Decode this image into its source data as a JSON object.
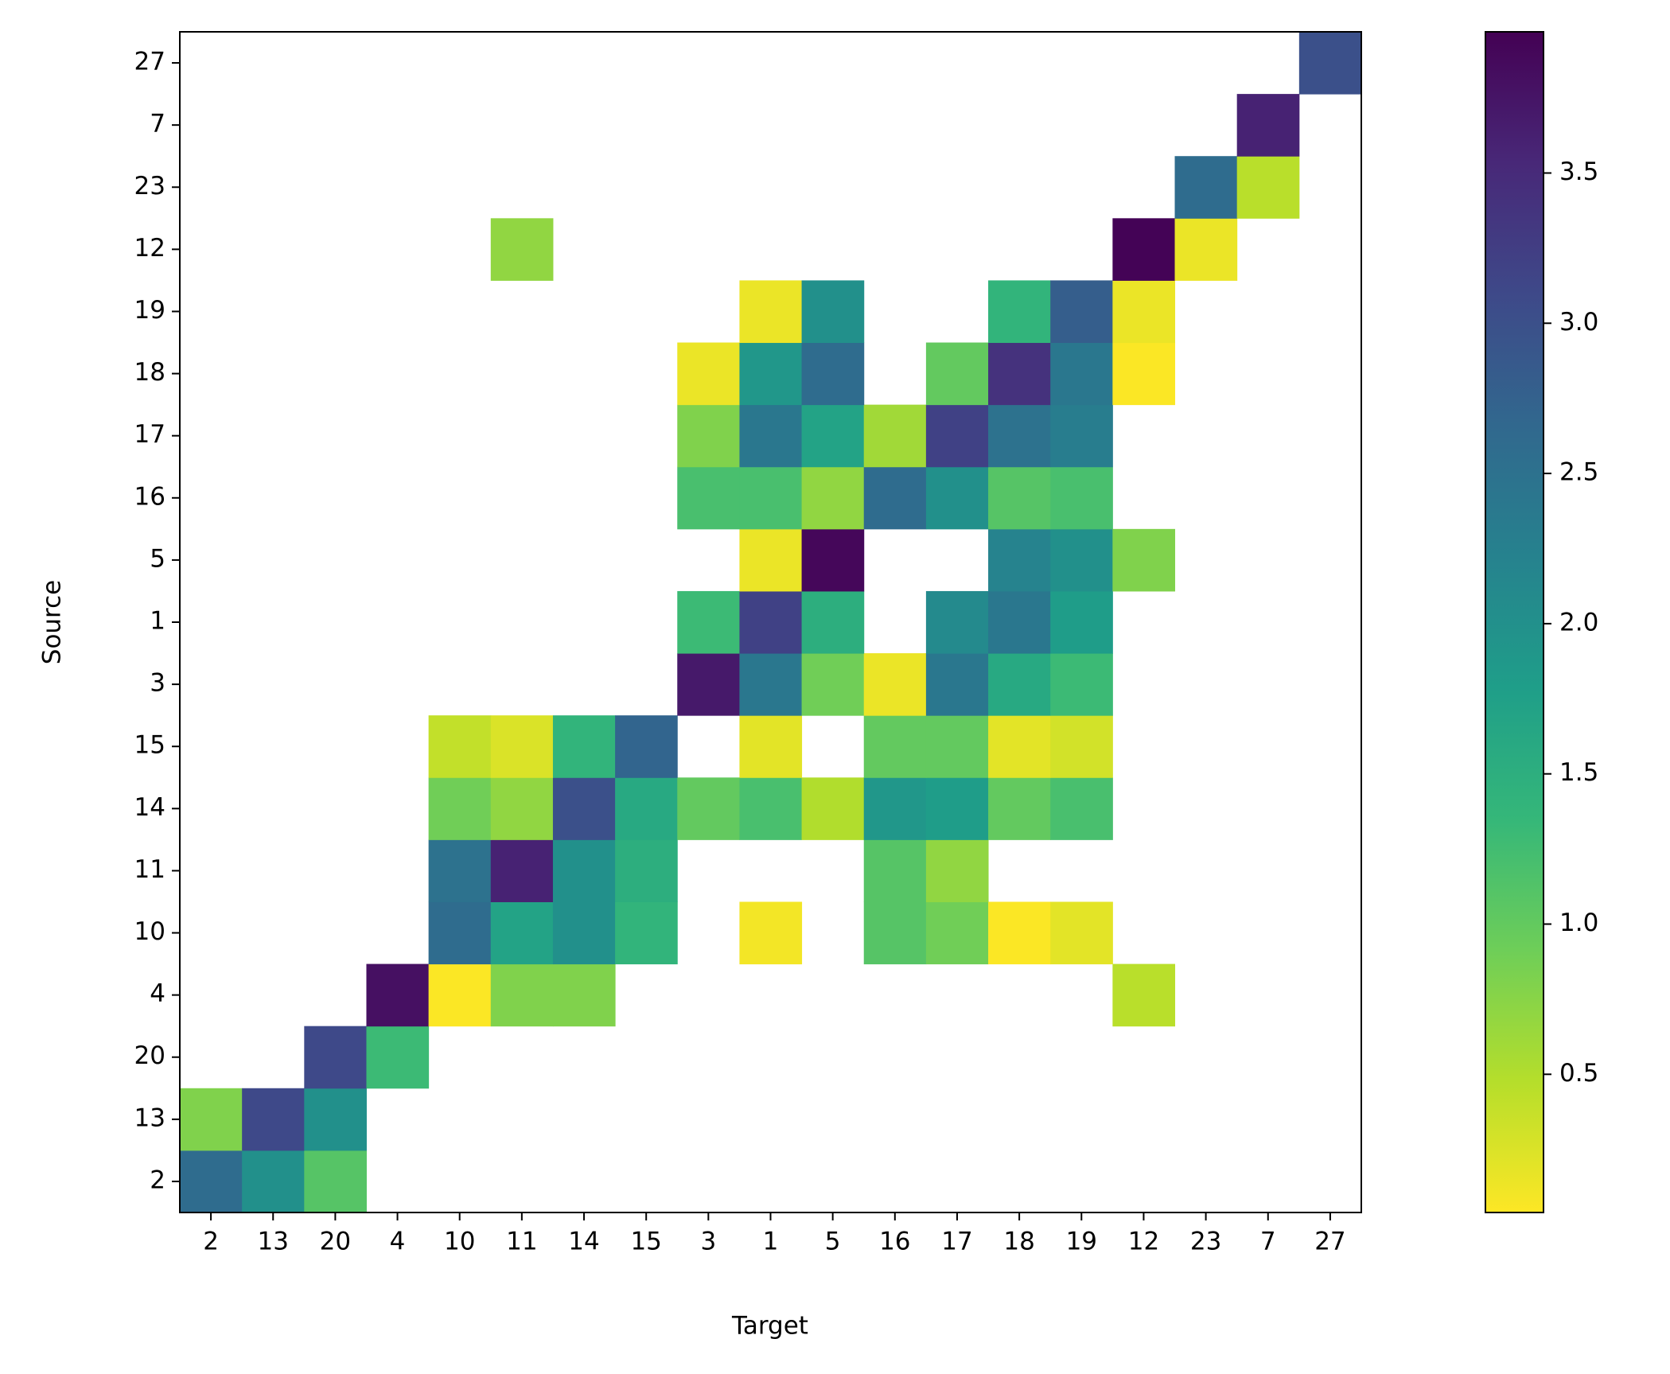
{
  "chart_data": {
    "type": "heatmap",
    "x_label": "Target",
    "y_label": "Source",
    "x_categories": [
      "2",
      "13",
      "20",
      "4",
      "10",
      "11",
      "14",
      "15",
      "3",
      "1",
      "5",
      "16",
      "17",
      "18",
      "19",
      "12",
      "23",
      "7",
      "27"
    ],
    "y_categories": [
      "2",
      "13",
      "20",
      "4",
      "10",
      "11",
      "14",
      "15",
      "3",
      "1",
      "5",
      "16",
      "17",
      "18",
      "19",
      "12",
      "23",
      "7",
      "27"
    ],
    "values": [
      [
        2.6,
        2.0,
        1.1,
        null,
        null,
        null,
        null,
        null,
        null,
        null,
        null,
        null,
        null,
        null,
        null,
        null,
        null,
        null,
        null
      ],
      [
        0.8,
        3.1,
        2.0,
        null,
        null,
        null,
        null,
        null,
        null,
        null,
        null,
        null,
        null,
        null,
        null,
        null,
        null,
        null,
        null
      ],
      [
        null,
        null,
        3.1,
        1.3,
        null,
        null,
        null,
        null,
        null,
        null,
        null,
        null,
        null,
        null,
        null,
        null,
        null,
        null,
        null
      ],
      [
        null,
        null,
        null,
        3.8,
        0.05,
        0.8,
        0.8,
        null,
        null,
        null,
        null,
        null,
        null,
        null,
        null,
        0.45,
        null,
        null,
        null
      ],
      [
        null,
        null,
        null,
        null,
        2.6,
        1.7,
        2.0,
        1.4,
        null,
        0.1,
        null,
        1.1,
        0.9,
        0.05,
        0.2,
        null,
        null,
        null,
        null
      ],
      [
        null,
        null,
        null,
        null,
        2.5,
        3.6,
        2.0,
        1.5,
        null,
        null,
        null,
        1.1,
        0.7,
        null,
        null,
        null,
        null,
        null,
        null
      ],
      [
        null,
        null,
        null,
        null,
        0.9,
        0.7,
        3.0,
        1.6,
        1.0,
        1.2,
        0.5,
        1.9,
        1.8,
        1.0,
        1.2,
        null,
        null,
        null,
        null
      ],
      [
        null,
        null,
        null,
        null,
        0.4,
        0.25,
        1.4,
        2.7,
        null,
        0.2,
        null,
        1.0,
        1.0,
        0.2,
        0.3,
        null,
        null,
        null,
        null
      ],
      [
        null,
        null,
        null,
        null,
        null,
        null,
        null,
        null,
        3.7,
        2.4,
        0.9,
        0.15,
        2.4,
        1.6,
        1.3,
        null,
        null,
        null,
        null
      ],
      [
        null,
        null,
        null,
        null,
        null,
        null,
        null,
        null,
        1.3,
        3.2,
        1.5,
        null,
        2.1,
        2.4,
        1.8,
        null,
        null,
        null,
        null
      ],
      [
        null,
        null,
        null,
        null,
        null,
        null,
        null,
        null,
        null,
        0.15,
        3.9,
        null,
        null,
        2.2,
        2.0,
        0.8,
        null,
        null,
        null
      ],
      [
        null,
        null,
        null,
        null,
        null,
        null,
        null,
        null,
        1.2,
        1.2,
        0.7,
        2.6,
        2.0,
        1.1,
        1.2,
        null,
        null,
        null,
        null
      ],
      [
        null,
        null,
        null,
        null,
        null,
        null,
        null,
        null,
        0.8,
        2.4,
        1.7,
        0.6,
        3.2,
        2.5,
        2.3,
        null,
        null,
        null,
        null
      ],
      [
        null,
        null,
        null,
        null,
        null,
        null,
        null,
        null,
        0.15,
        1.9,
        2.6,
        null,
        1.0,
        3.4,
        2.4,
        0.05,
        null,
        null,
        null
      ],
      [
        null,
        null,
        null,
        null,
        null,
        null,
        null,
        null,
        null,
        0.15,
        2.0,
        null,
        null,
        1.4,
        2.8,
        0.15,
        null,
        null,
        null
      ],
      [
        null,
        null,
        null,
        null,
        null,
        0.7,
        null,
        null,
        null,
        null,
        null,
        null,
        null,
        null,
        null,
        3.95,
        0.15,
        null,
        null
      ],
      [
        null,
        null,
        null,
        null,
        null,
        null,
        null,
        null,
        null,
        null,
        null,
        null,
        null,
        null,
        null,
        null,
        2.6,
        0.45,
        null
      ],
      [
        null,
        null,
        null,
        null,
        null,
        null,
        null,
        null,
        null,
        null,
        null,
        null,
        null,
        null,
        null,
        null,
        null,
        3.6,
        null
      ],
      [
        null,
        null,
        null,
        null,
        null,
        null,
        null,
        null,
        null,
        null,
        null,
        null,
        null,
        null,
        null,
        null,
        null,
        null,
        3.0
      ]
    ],
    "colormap": "viridis_r",
    "clim": [
      0.04,
      3.97
    ],
    "cticks": [
      0.5,
      1.0,
      1.5,
      2.0,
      2.5,
      3.0,
      3.5
    ]
  }
}
